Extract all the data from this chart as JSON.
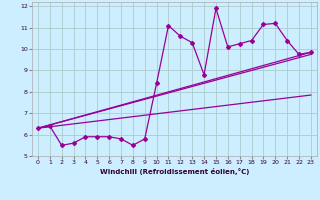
{
  "xlabel": "Windchill (Refroidissement éolien,°C)",
  "bg_color": "#cceeff",
  "grid_color": "#aacccc",
  "line_color": "#990099",
  "xlim": [
    -0.5,
    23.5
  ],
  "ylim": [
    5,
    12.2
  ],
  "xticks": [
    0,
    1,
    2,
    3,
    4,
    5,
    6,
    7,
    8,
    9,
    10,
    11,
    12,
    13,
    14,
    15,
    16,
    17,
    18,
    19,
    20,
    21,
    22,
    23
  ],
  "yticks": [
    5,
    6,
    7,
    8,
    9,
    10,
    11,
    12
  ],
  "scatter_x": [
    0,
    1,
    2,
    3,
    4,
    5,
    6,
    7,
    8,
    9,
    10,
    11,
    12,
    13,
    14,
    15,
    16,
    17,
    18,
    19,
    20,
    21,
    22,
    23
  ],
  "scatter_y": [
    6.3,
    6.4,
    5.5,
    5.6,
    5.9,
    5.9,
    5.9,
    5.8,
    5.5,
    5.8,
    8.4,
    11.1,
    10.6,
    10.3,
    8.8,
    11.9,
    10.1,
    10.25,
    10.4,
    11.15,
    11.2,
    10.4,
    9.75,
    9.85
  ],
  "reg_line1": [
    6.3,
    9.85
  ],
  "reg_line2": [
    6.3,
    9.75
  ],
  "reg_line3": [
    6.3,
    7.85
  ]
}
